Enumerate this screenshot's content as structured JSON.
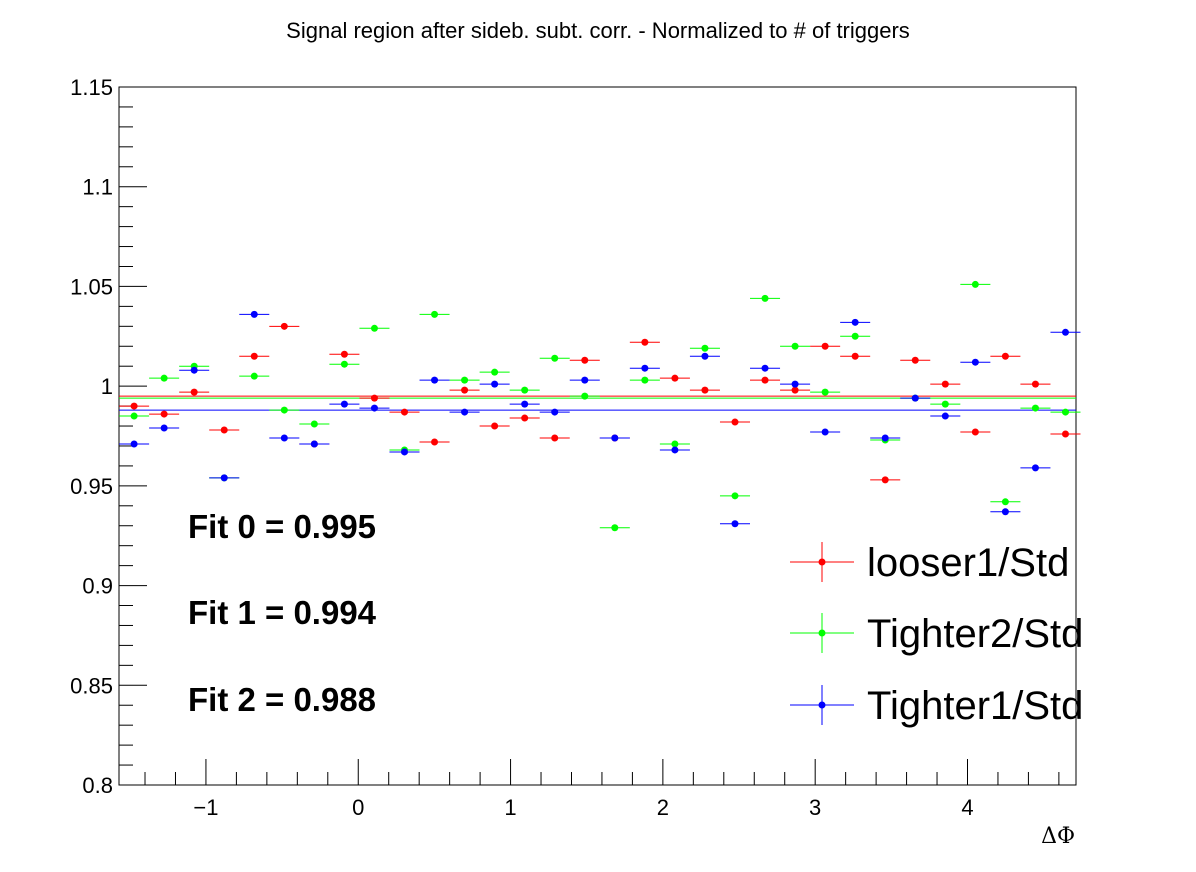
{
  "chart_data": {
    "type": "scatter",
    "title": "Signal region after sideb. subt. corr. - Normalized to # of triggers",
    "xlabel": "ΔΦ",
    "ylabel": "",
    "xlim": [
      -1.5708,
      4.7124
    ],
    "ylim": [
      0.8,
      1.15
    ],
    "x_ticks": [
      -1,
      0,
      1,
      2,
      3,
      4
    ],
    "x_tick_labels": [
      "−1",
      "0",
      "1",
      "2",
      "3",
      "4"
    ],
    "y_ticks": [
      0.8,
      0.85,
      0.9,
      0.95,
      1.0,
      1.05,
      1.1,
      1.15
    ],
    "y_tick_labels": [
      "0.8",
      "0.85",
      "0.9",
      "0.95",
      "1",
      "1.05",
      "1.1",
      "1.15"
    ],
    "x": [
      -1.4717,
      -1.2745,
      -1.0772,
      -0.8799,
      -0.6827,
      -0.4854,
      -0.2882,
      -0.0909,
      0.1064,
      0.3036,
      0.5009,
      0.6981,
      0.8954,
      1.0927,
      1.2899,
      1.4872,
      1.6844,
      1.8817,
      2.079,
      2.2762,
      2.4735,
      2.6707,
      2.868,
      3.0653,
      3.2625,
      3.4598,
      3.657,
      3.8543,
      4.0516,
      4.2488,
      4.4461,
      4.6433
    ],
    "series": [
      {
        "name": "looser1/Std",
        "color": "#ff0000",
        "fit_value": 0.995,
        "values": [
          0.99,
          0.986,
          0.997,
          0.978,
          1.015,
          1.03,
          0.971,
          1.016,
          0.994,
          0.987,
          0.972,
          0.998,
          0.98,
          0.984,
          0.974,
          1.013,
          0.974,
          1.022,
          1.004,
          0.998,
          0.982,
          1.003,
          0.998,
          1.02,
          1.015,
          0.953,
          1.013,
          1.001,
          0.977,
          1.015,
          1.001,
          0.976
        ]
      },
      {
        "name": "Tighter2/Std",
        "color": "#00ff00",
        "fit_value": 0.994,
        "values": [
          0.985,
          1.004,
          1.01,
          0.954,
          1.005,
          0.988,
          0.981,
          1.011,
          1.029,
          0.968,
          1.036,
          1.003,
          1.007,
          0.998,
          1.014,
          0.995,
          0.929,
          1.003,
          0.971,
          1.019,
          0.945,
          1.044,
          1.02,
          0.997,
          1.025,
          0.973,
          0.994,
          0.991,
          1.051,
          0.942,
          0.989,
          0.987
        ]
      },
      {
        "name": "Tighter1/Std",
        "color": "#0000ff",
        "fit_value": 0.988,
        "values": [
          0.971,
          0.979,
          1.008,
          0.954,
          1.036,
          0.974,
          0.971,
          0.991,
          0.989,
          0.967,
          1.003,
          0.987,
          1.001,
          0.991,
          0.987,
          1.003,
          0.974,
          1.009,
          0.968,
          1.015,
          0.931,
          1.009,
          1.001,
          0.977,
          1.032,
          0.974,
          0.994,
          0.985,
          1.012,
          0.937,
          0.959,
          1.027
        ]
      }
    ],
    "annotations": [
      "Fit 0 = 0.995",
      "Fit 1 = 0.994",
      "Fit 2 = 0.988"
    ],
    "legend_position": "bottom-right",
    "grid": false
  }
}
